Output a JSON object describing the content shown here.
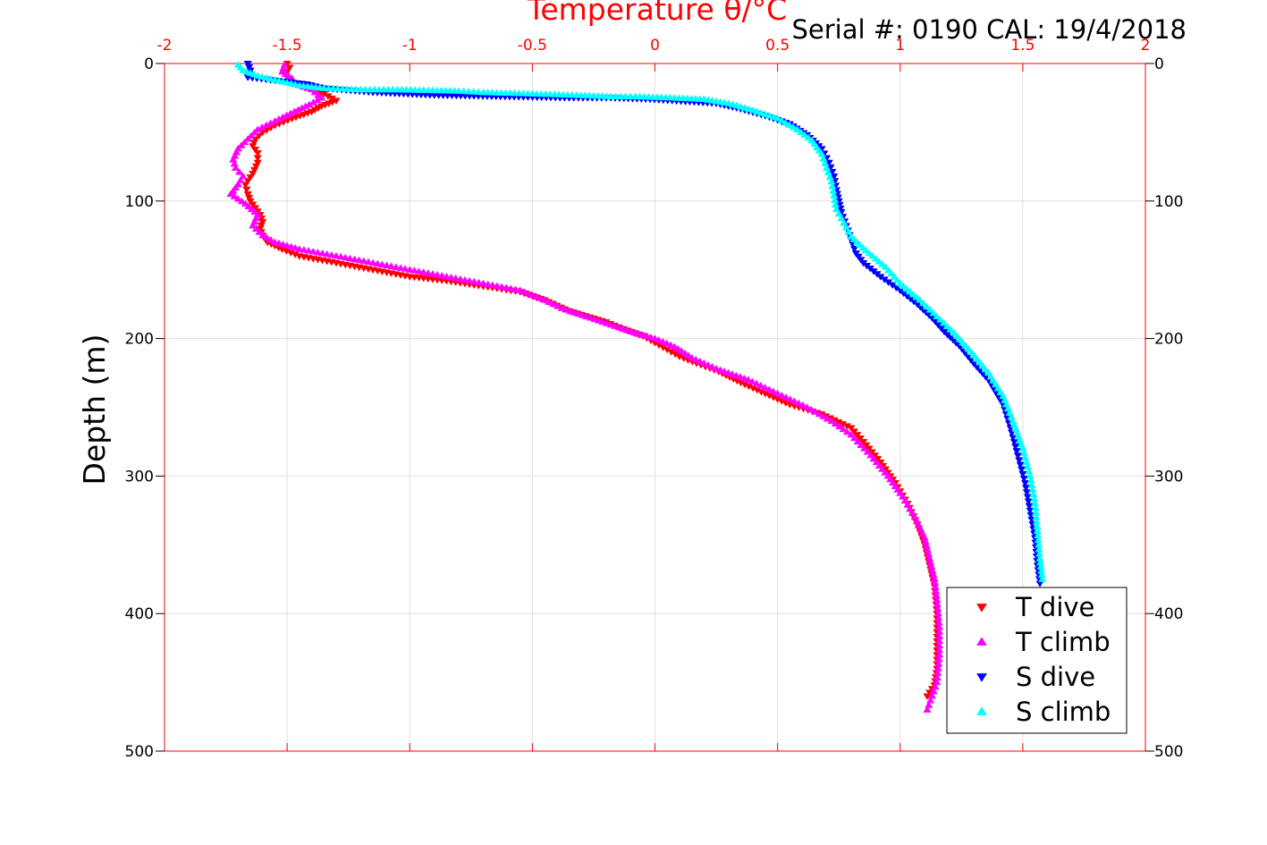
{
  "chart_data": {
    "type": "scatter",
    "title": "Temperature θ/°C",
    "subtitle": "Serial #: 0190  CAL: 19/4/2018",
    "xlabel": "Temperature θ/°C",
    "ylabel": "Depth (m)",
    "xlim": [
      -2,
      2
    ],
    "ylim": [
      0,
      500
    ],
    "y_reversed": true,
    "x_ticks": [
      "-2",
      "-1.5",
      "-1",
      "-0.5",
      "0",
      "0.5",
      "1",
      "1.5",
      "2"
    ],
    "y_ticks": [
      "0",
      "100",
      "200",
      "300",
      "400",
      "500"
    ],
    "grid": true,
    "legend_position": "bottom-right",
    "colors": {
      "T dive": "#ff0000",
      "T climb": "#ff00ff",
      "S dive": "#0000ff",
      "S climb": "#00ffff",
      "x_axis": "#ff0000"
    },
    "series": [
      {
        "name": "T dive",
        "marker": "triangle-down",
        "color": "#ff0000",
        "points": [
          [
            -1.5,
            0
          ],
          [
            -1.49,
            3
          ],
          [
            -1.5,
            6
          ],
          [
            -1.5,
            10
          ],
          [
            -1.48,
            14
          ],
          [
            -1.41,
            18
          ],
          [
            -1.35,
            22
          ],
          [
            -1.3,
            27
          ],
          [
            -1.36,
            31
          ],
          [
            -1.4,
            35
          ],
          [
            -1.48,
            40
          ],
          [
            -1.55,
            45
          ],
          [
            -1.6,
            50
          ],
          [
            -1.63,
            55
          ],
          [
            -1.64,
            60
          ],
          [
            -1.62,
            65
          ],
          [
            -1.62,
            72
          ],
          [
            -1.64,
            80
          ],
          [
            -1.67,
            88
          ],
          [
            -1.66,
            95
          ],
          [
            -1.65,
            100
          ],
          [
            -1.63,
            105
          ],
          [
            -1.61,
            110
          ],
          [
            -1.6,
            115
          ],
          [
            -1.61,
            120
          ],
          [
            -1.6,
            125
          ],
          [
            -1.58,
            130
          ],
          [
            -1.52,
            135
          ],
          [
            -1.45,
            140
          ],
          [
            -1.3,
            145
          ],
          [
            -1.15,
            150
          ],
          [
            -1.0,
            155
          ],
          [
            -0.85,
            158
          ],
          [
            -0.7,
            162
          ],
          [
            -0.55,
            166
          ],
          [
            -0.45,
            172
          ],
          [
            -0.35,
            180
          ],
          [
            -0.2,
            188
          ],
          [
            -0.13,
            193
          ],
          [
            -0.05,
            198
          ],
          [
            0.0,
            203
          ],
          [
            0.05,
            208
          ],
          [
            0.1,
            213
          ],
          [
            0.17,
            218
          ],
          [
            0.26,
            224
          ],
          [
            0.35,
            232
          ],
          [
            0.45,
            240
          ],
          [
            0.55,
            248
          ],
          [
            0.68,
            255
          ],
          [
            0.8,
            265
          ],
          [
            0.85,
            275
          ],
          [
            0.92,
            290
          ],
          [
            0.98,
            305
          ],
          [
            1.03,
            320
          ],
          [
            1.07,
            335
          ],
          [
            1.1,
            350
          ],
          [
            1.12,
            365
          ],
          [
            1.14,
            380
          ],
          [
            1.15,
            400
          ],
          [
            1.15,
            420
          ],
          [
            1.15,
            440
          ],
          [
            1.14,
            452
          ],
          [
            1.11,
            460
          ]
        ]
      },
      {
        "name": "T climb",
        "marker": "triangle-up",
        "color": "#ff00ff",
        "points": [
          [
            -1.51,
            1
          ],
          [
            -1.52,
            6
          ],
          [
            -1.48,
            11
          ],
          [
            -1.47,
            15
          ],
          [
            -1.4,
            19
          ],
          [
            -1.36,
            25
          ],
          [
            -1.41,
            30
          ],
          [
            -1.47,
            35
          ],
          [
            -1.55,
            42
          ],
          [
            -1.62,
            48
          ],
          [
            -1.66,
            55
          ],
          [
            -1.7,
            62
          ],
          [
            -1.72,
            70
          ],
          [
            -1.71,
            76
          ],
          [
            -1.68,
            82
          ],
          [
            -1.7,
            88
          ],
          [
            -1.73,
            95
          ],
          [
            -1.67,
            102
          ],
          [
            -1.62,
            110
          ],
          [
            -1.64,
            118
          ],
          [
            -1.6,
            125
          ],
          [
            -1.55,
            130
          ],
          [
            -1.45,
            135
          ],
          [
            -1.3,
            140
          ],
          [
            -1.15,
            145
          ],
          [
            -1.0,
            150
          ],
          [
            -0.85,
            155
          ],
          [
            -0.7,
            160
          ],
          [
            -0.55,
            165
          ],
          [
            -0.45,
            172
          ],
          [
            -0.38,
            178
          ],
          [
            -0.28,
            184
          ],
          [
            -0.18,
            190
          ],
          [
            -0.08,
            196
          ],
          [
            0.0,
            200
          ],
          [
            0.08,
            206
          ],
          [
            0.15,
            214
          ],
          [
            0.25,
            222
          ],
          [
            0.38,
            230
          ],
          [
            0.5,
            240
          ],
          [
            0.62,
            250
          ],
          [
            0.72,
            260
          ],
          [
            0.8,
            270
          ],
          [
            0.88,
            285
          ],
          [
            0.95,
            300
          ],
          [
            1.01,
            315
          ],
          [
            1.06,
            330
          ],
          [
            1.1,
            345
          ],
          [
            1.12,
            360
          ],
          [
            1.14,
            375
          ],
          [
            1.15,
            390
          ],
          [
            1.16,
            410
          ],
          [
            1.16,
            430
          ],
          [
            1.15,
            450
          ],
          [
            1.13,
            460
          ],
          [
            1.11,
            470
          ]
        ]
      },
      {
        "name": "S dive",
        "marker": "triangle-down",
        "color": "#0000ff",
        "points": [
          [
            -1.66,
            0
          ],
          [
            -1.65,
            5
          ],
          [
            -1.66,
            10
          ],
          [
            -1.42,
            15
          ],
          [
            -1.35,
            18
          ],
          [
            -1.15,
            21
          ],
          [
            -0.9,
            23
          ],
          [
            -0.63,
            24
          ],
          [
            -0.35,
            25
          ],
          [
            -0.18,
            25
          ],
          [
            -0.02,
            26
          ],
          [
            0.25,
            29
          ],
          [
            0.35,
            33
          ],
          [
            0.45,
            38
          ],
          [
            0.55,
            44
          ],
          [
            0.62,
            52
          ],
          [
            0.68,
            62
          ],
          [
            0.71,
            72
          ],
          [
            0.73,
            82
          ],
          [
            0.74,
            92
          ],
          [
            0.75,
            100
          ],
          [
            0.76,
            108
          ],
          [
            0.78,
            118
          ],
          [
            0.8,
            128
          ],
          [
            0.82,
            138
          ],
          [
            0.85,
            145
          ],
          [
            0.92,
            155
          ],
          [
            1.0,
            165
          ],
          [
            1.07,
            175
          ],
          [
            1.13,
            185
          ],
          [
            1.18,
            195
          ],
          [
            1.24,
            205
          ],
          [
            1.3,
            218
          ],
          [
            1.36,
            230
          ],
          [
            1.42,
            248
          ],
          [
            1.45,
            265
          ],
          [
            1.48,
            285
          ],
          [
            1.51,
            305
          ],
          [
            1.53,
            325
          ],
          [
            1.55,
            345
          ],
          [
            1.56,
            365
          ],
          [
            1.57,
            378
          ]
        ]
      },
      {
        "name": "S climb",
        "marker": "triangle-up",
        "color": "#00ffff",
        "points": [
          [
            -1.7,
            1
          ],
          [
            -1.68,
            5
          ],
          [
            -1.62,
            9
          ],
          [
            -1.55,
            12
          ],
          [
            -1.45,
            16
          ],
          [
            -1.35,
            18
          ],
          [
            -1.2,
            19
          ],
          [
            -1.05,
            19
          ],
          [
            -0.8,
            20
          ],
          [
            -0.7,
            21
          ],
          [
            -0.5,
            22
          ],
          [
            -0.32,
            23
          ],
          [
            -0.18,
            24
          ],
          [
            -0.08,
            24
          ],
          [
            0.08,
            25
          ],
          [
            0.2,
            26
          ],
          [
            0.3,
            29
          ],
          [
            0.4,
            34
          ],
          [
            0.5,
            40
          ],
          [
            0.58,
            48
          ],
          [
            0.64,
            56
          ],
          [
            0.68,
            66
          ],
          [
            0.7,
            76
          ],
          [
            0.72,
            86
          ],
          [
            0.73,
            96
          ],
          [
            0.74,
            106
          ],
          [
            0.77,
            116
          ],
          [
            0.8,
            126
          ],
          [
            0.86,
            136
          ],
          [
            0.94,
            148
          ],
          [
            1.0,
            160
          ],
          [
            1.08,
            172
          ],
          [
            1.15,
            184
          ],
          [
            1.22,
            196
          ],
          [
            1.29,
            210
          ],
          [
            1.36,
            225
          ],
          [
            1.42,
            242
          ],
          [
            1.46,
            260
          ],
          [
            1.5,
            280
          ],
          [
            1.53,
            300
          ],
          [
            1.55,
            320
          ],
          [
            1.56,
            340
          ],
          [
            1.57,
            360
          ],
          [
            1.58,
            375
          ]
        ]
      }
    ]
  }
}
